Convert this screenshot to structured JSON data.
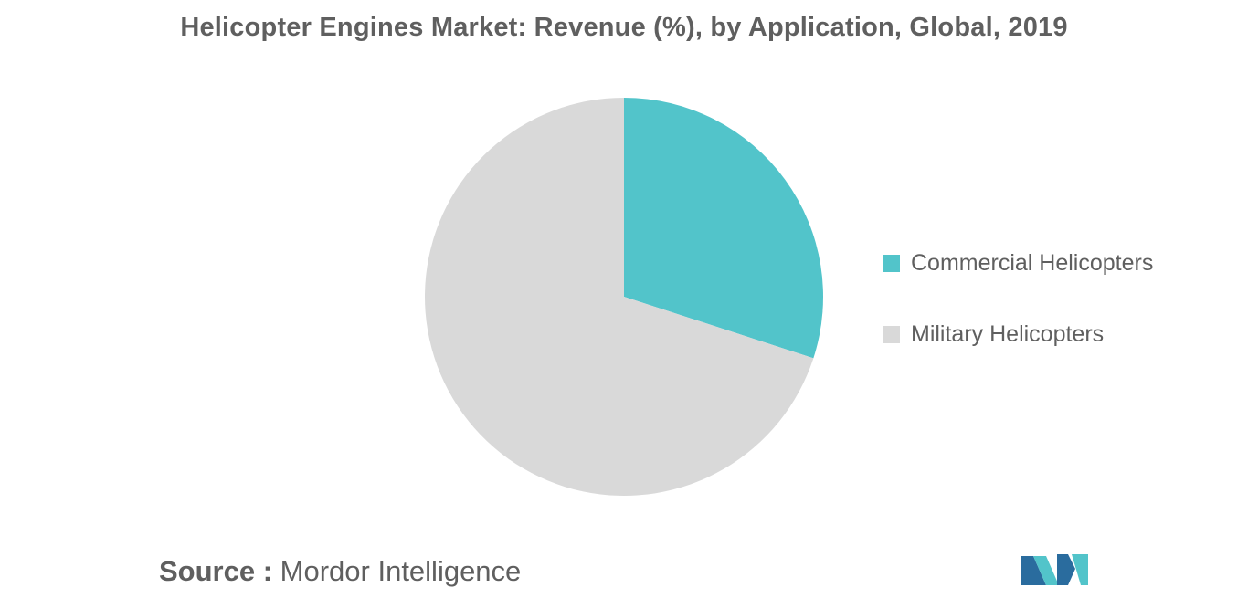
{
  "chart_data": {
    "type": "pie",
    "title": "Helicopter Engines Market: Revenue (%), by Application, Global, 2019",
    "categories": [
      "Commercial Helicopters",
      "Military Helicopters"
    ],
    "values": [
      30,
      70
    ],
    "colors": [
      "#52c4ca",
      "#d9d9d9"
    ],
    "start_angle_deg": 0,
    "direction": "clockwise",
    "legend_position": "right"
  },
  "source": {
    "label": "Source :",
    "text": "Mordor Intelligence"
  },
  "logo": {
    "icon": "mordor-intelligence-logo-icon",
    "colors": [
      "#2a6c9e",
      "#52c4ca"
    ]
  }
}
